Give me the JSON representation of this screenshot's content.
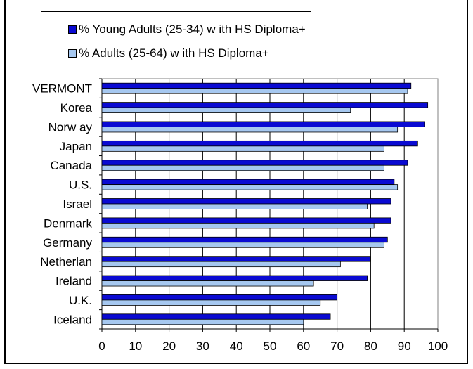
{
  "chart_data": {
    "type": "bar",
    "orientation": "horizontal",
    "categories": [
      "VERMONT",
      "Korea",
      "Norw ay",
      "Japan",
      "Canada",
      "U.S.",
      "Israel",
      "Denmark",
      "Germany",
      "Netherlan",
      "Ireland",
      "U.K.",
      "Iceland"
    ],
    "series": [
      {
        "name": "% Young Adults (25-34) w ith HS Diploma+",
        "color": "#0a0ad2",
        "values": [
          92,
          97,
          96,
          94,
          91,
          87,
          86,
          86,
          85,
          80,
          79,
          70,
          68
        ]
      },
      {
        "name": "% Adults (25-64) w ith HS Diploma+",
        "color": "#a6c8f0",
        "values": [
          91,
          74,
          88,
          84,
          84,
          88,
          79,
          81,
          84,
          71,
          63,
          65,
          60
        ]
      }
    ],
    "xticks": [
      "0",
      "10",
      "20",
      "30",
      "40",
      "50",
      "60",
      "70",
      "80",
      "90",
      "100"
    ],
    "xlim": [
      0,
      100
    ],
    "grid": "vertical",
    "legend_position": "top"
  }
}
